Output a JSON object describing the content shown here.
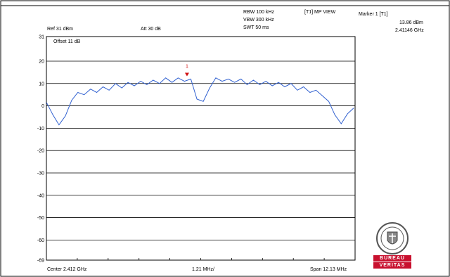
{
  "header": {
    "rbw": "RBW 100 kHz",
    "vbw": "VBW 300 kHz",
    "swt": "SWT 50 ms",
    "view": "[T1] MP VIEW",
    "marker_title": "Marker 1 [T1]",
    "marker_level": "13.86 dBm",
    "marker_freq": "2.41146 GHz"
  },
  "settings": {
    "ref": "Ref 31 dBm",
    "att": "Att  30 dB",
    "offset": "Offset 11 dB"
  },
  "footer": {
    "center": "Center 2.412 GHz",
    "div": "1.21 MHz/",
    "span": "Span 12.13 MHz"
  },
  "logo": {
    "line1": "BUREAU",
    "line2": "VERITAS",
    "color": "#c8102e"
  },
  "chart_data": {
    "type": "line",
    "title": "",
    "xlabel": "",
    "ylabel": "",
    "xlim": [
      2405.935,
      2418.065
    ],
    "ylim": [
      -69,
      31
    ],
    "y_ticks": [
      "31",
      "20",
      "10",
      "0",
      "-10",
      "-20",
      "-30",
      "-40",
      "-50",
      "-60",
      "-69"
    ],
    "y_tick_values": [
      31,
      20,
      10,
      0,
      -10,
      -20,
      -30,
      -40,
      -50,
      -60,
      -69
    ],
    "grid": true,
    "trace_color": "#3060d0",
    "marker": {
      "label": "1",
      "x": 2411.46,
      "y": 13.86,
      "color": "#d01010"
    },
    "series": [
      {
        "x": [
          2405.94,
          2406.19,
          2406.43,
          2406.68,
          2406.93,
          2407.17,
          2407.42,
          2407.67,
          2407.91,
          2408.16,
          2408.4,
          2408.65,
          2408.9,
          2409.14,
          2409.39,
          2409.64,
          2409.88,
          2410.13,
          2410.38,
          2410.62,
          2410.87,
          2411.11,
          2411.36,
          2411.61,
          2411.85,
          2412.1,
          2412.35,
          2412.59,
          2412.84,
          2413.09,
          2413.33,
          2413.58,
          2413.82,
          2414.07,
          2414.32,
          2414.56,
          2414.81,
          2415.06,
          2415.3,
          2415.55,
          2415.8,
          2416.04,
          2416.29,
          2416.53,
          2416.78,
          2417.03,
          2417.27,
          2417.52,
          2417.77,
          2418.01
        ],
        "values": [
          1.5,
          -4.0,
          -8.5,
          -4.5,
          2.5,
          6.0,
          5.0,
          7.5,
          6.0,
          8.5,
          7.0,
          10.0,
          8.0,
          10.5,
          9.0,
          11.0,
          9.5,
          11.5,
          10.0,
          12.5,
          10.5,
          12.5,
          11.0,
          12.0,
          3.0,
          2.0,
          8.0,
          12.5,
          11.0,
          12.0,
          10.5,
          12.0,
          9.5,
          11.5,
          9.5,
          11.0,
          9.0,
          10.5,
          8.5,
          10.0,
          7.0,
          8.5,
          6.0,
          7.0,
          4.5,
          2.0,
          -4.0,
          -8.0,
          -3.5,
          -1.0
        ]
      }
    ]
  }
}
